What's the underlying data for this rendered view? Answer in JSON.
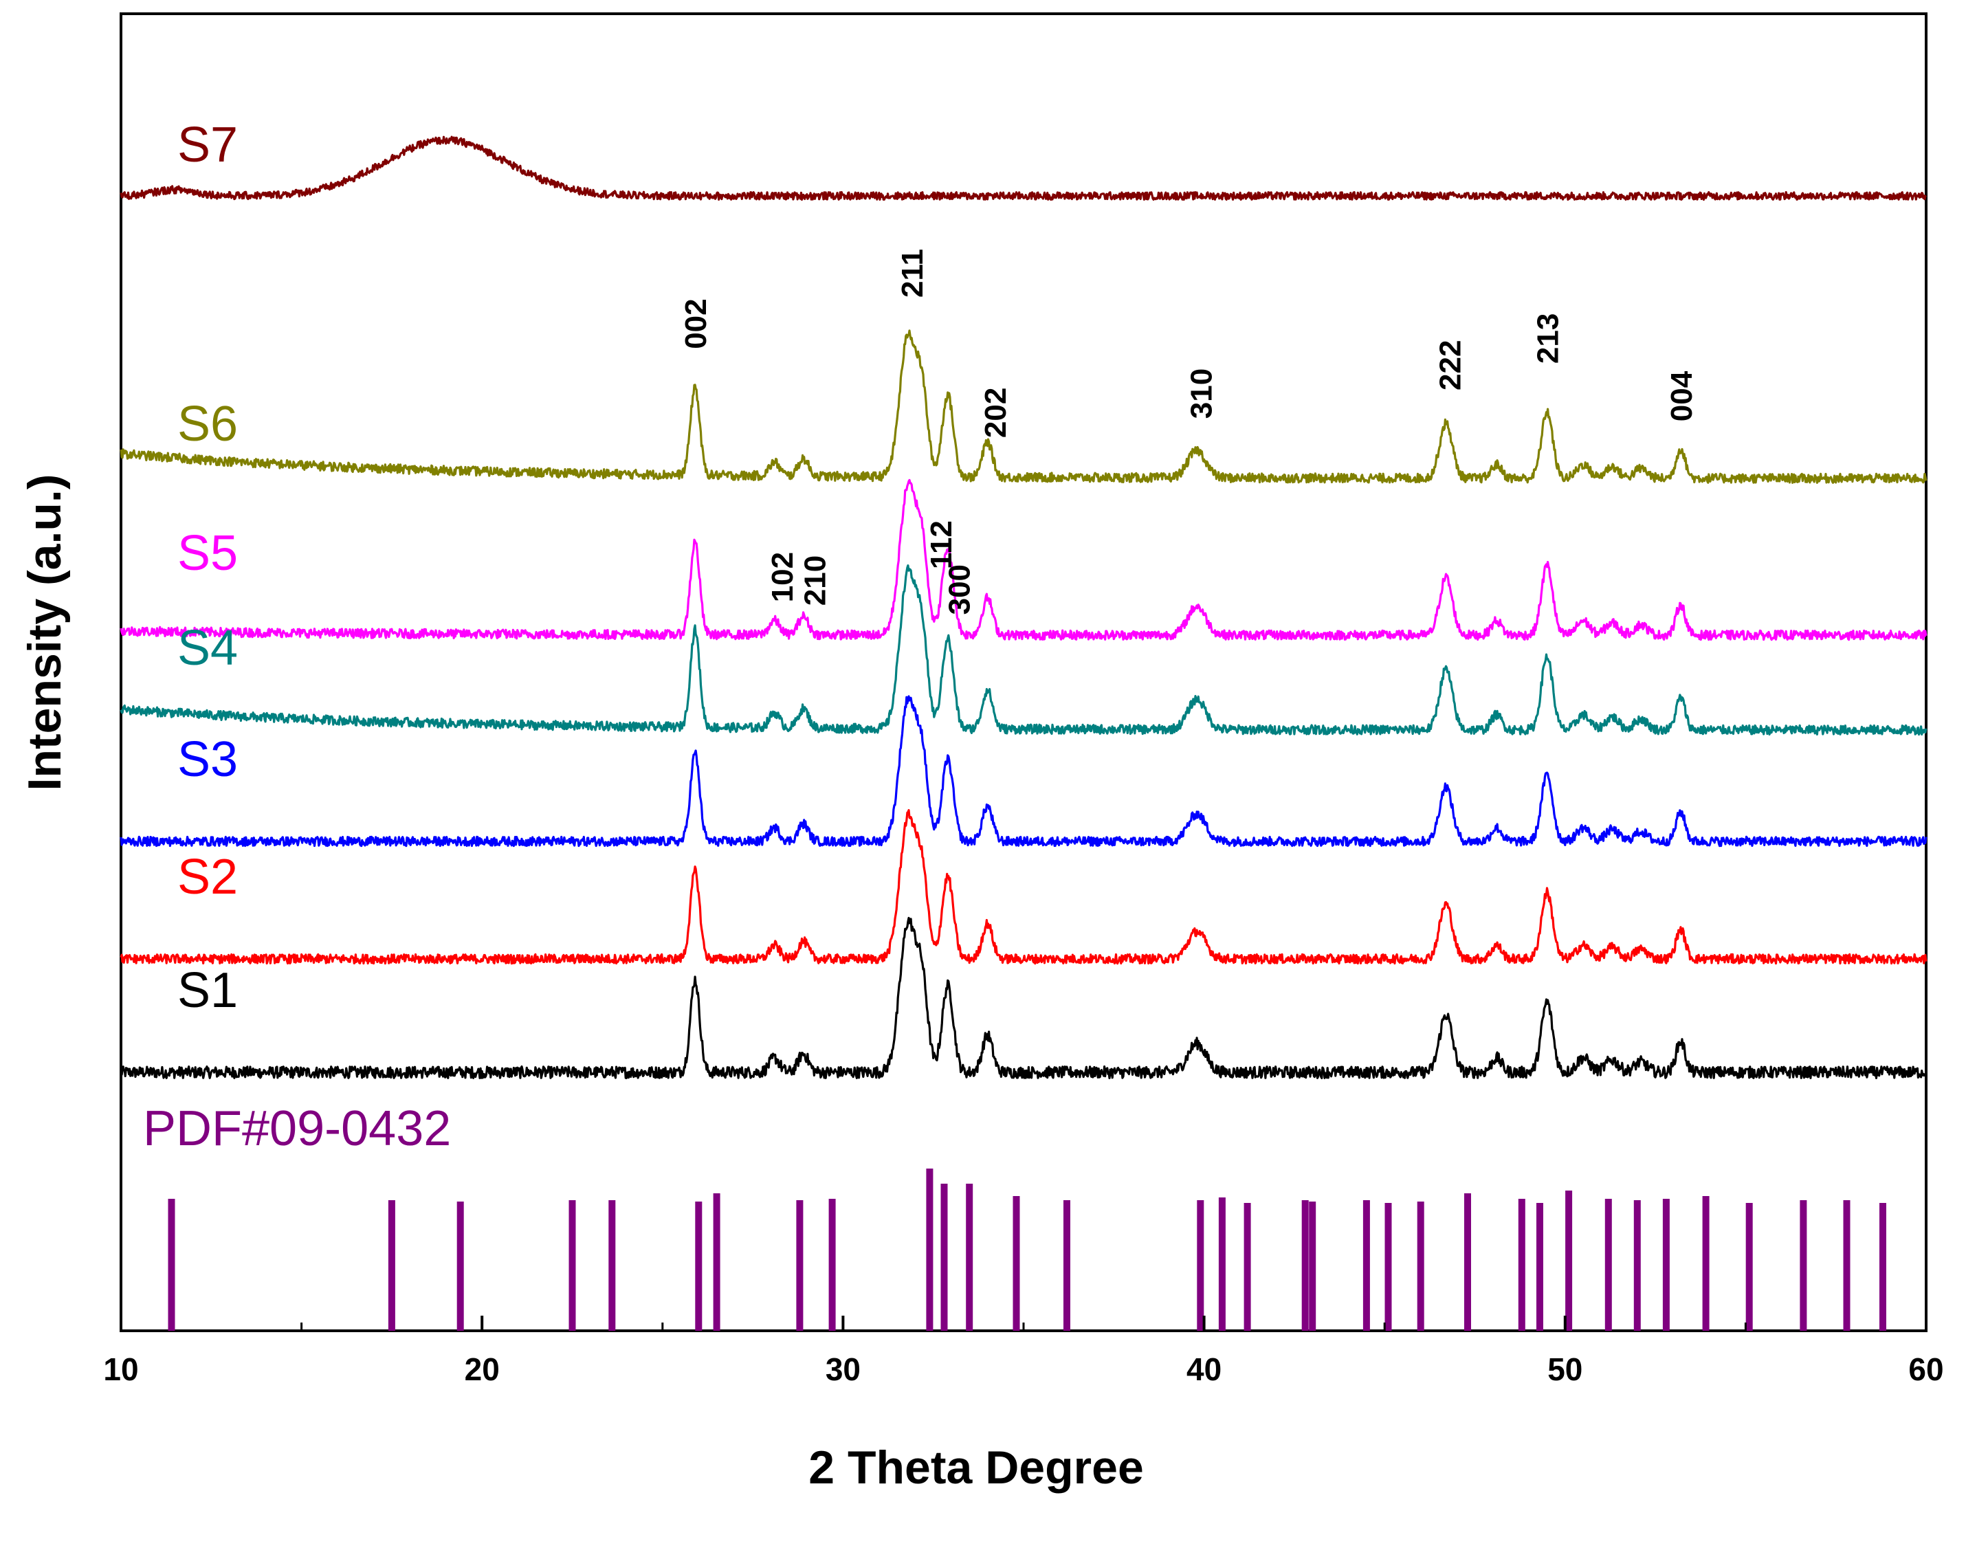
{
  "chart_data": {
    "type": "line",
    "title": "",
    "xlabel": "2 Theta Degree",
    "ylabel": "Intensity (a.u.)",
    "xlim": [
      10,
      60
    ],
    "xticks": [
      10,
      20,
      30,
      40,
      50,
      60
    ],
    "xtick_labels": [
      "10",
      "20",
      "30",
      "40",
      "50",
      "60"
    ],
    "y_ticks_shown": false,
    "series": [
      {
        "name": "S1",
        "label": "S1",
        "color": "#000000",
        "offset": 0.0,
        "noise": 0.028,
        "baseline": 0.0,
        "peak_scale": 1.0
      },
      {
        "name": "S2",
        "label": "S2",
        "color": "#ff0000",
        "offset": 0.55,
        "noise": 0.022,
        "baseline": 0.0,
        "peak_scale": 0.95
      },
      {
        "name": "S3",
        "label": "S3",
        "color": "#0000ff",
        "offset": 1.12,
        "noise": 0.022,
        "baseline": 0.0,
        "peak_scale": 0.95
      },
      {
        "name": "S4",
        "label": "S4",
        "color": "#008080",
        "offset": 1.66,
        "noise": 0.022,
        "baseline": 0.1,
        "peak_scale": 1.05
      },
      {
        "name": "S5",
        "label": "S5",
        "color": "#ff00ff",
        "offset": 2.12,
        "noise": 0.022,
        "baseline": 0.02,
        "peak_scale": 1.0
      },
      {
        "name": "S6",
        "label": "S6",
        "color": "#808000",
        "offset": 2.88,
        "noise": 0.022,
        "baseline": 0.12,
        "peak_scale": 0.95
      },
      {
        "name": "S7",
        "label": "S7",
        "color": "#800000",
        "offset": 4.25,
        "noise": 0.018,
        "baseline": 0.0,
        "peak_scale": 0.0
      }
    ],
    "peaks": [
      {
        "x": 25.9,
        "h": 0.45,
        "w": 0.18
      },
      {
        "x": 28.1,
        "h": 0.07,
        "w": 0.2
      },
      {
        "x": 28.9,
        "h": 0.09,
        "w": 0.2
      },
      {
        "x": 31.8,
        "h": 0.72,
        "w": 0.32
      },
      {
        "x": 32.2,
        "h": 0.38,
        "w": 0.22
      },
      {
        "x": 32.9,
        "h": 0.42,
        "w": 0.22
      },
      {
        "x": 34.0,
        "h": 0.18,
        "w": 0.2
      },
      {
        "x": 39.8,
        "h": 0.14,
        "w": 0.35
      },
      {
        "x": 46.7,
        "h": 0.28,
        "w": 0.25
      },
      {
        "x": 48.1,
        "h": 0.07,
        "w": 0.2
      },
      {
        "x": 49.5,
        "h": 0.34,
        "w": 0.22
      },
      {
        "x": 50.5,
        "h": 0.07,
        "w": 0.25
      },
      {
        "x": 51.3,
        "h": 0.06,
        "w": 0.25
      },
      {
        "x": 52.1,
        "h": 0.05,
        "w": 0.25
      },
      {
        "x": 53.2,
        "h": 0.15,
        "w": 0.18
      }
    ],
    "s7_hump": {
      "center": 19.0,
      "height": 0.27,
      "width": 2.4
    },
    "reference": {
      "label": "PDF#09-0432",
      "color": "#800080",
      "lines": [
        {
          "x": 11.4,
          "h": 0.96
        },
        {
          "x": 17.5,
          "h": 0.95
        },
        {
          "x": 19.4,
          "h": 0.94
        },
        {
          "x": 22.5,
          "h": 0.95
        },
        {
          "x": 23.6,
          "h": 0.95
        },
        {
          "x": 26.0,
          "h": 0.94
        },
        {
          "x": 26.5,
          "h": 1.0
        },
        {
          "x": 28.8,
          "h": 0.95
        },
        {
          "x": 29.7,
          "h": 0.96
        },
        {
          "x": 32.4,
          "h": 1.18
        },
        {
          "x": 32.8,
          "h": 1.07
        },
        {
          "x": 33.5,
          "h": 1.07
        },
        {
          "x": 34.8,
          "h": 0.98
        },
        {
          "x": 36.2,
          "h": 0.95
        },
        {
          "x": 39.9,
          "h": 0.95
        },
        {
          "x": 40.5,
          "h": 0.97
        },
        {
          "x": 41.2,
          "h": 0.93
        },
        {
          "x": 42.8,
          "h": 0.95
        },
        {
          "x": 43.0,
          "h": 0.94
        },
        {
          "x": 44.5,
          "h": 0.95
        },
        {
          "x": 45.1,
          "h": 0.93
        },
        {
          "x": 46.0,
          "h": 0.94
        },
        {
          "x": 47.3,
          "h": 1.0
        },
        {
          "x": 48.8,
          "h": 0.96
        },
        {
          "x": 49.3,
          "h": 0.93
        },
        {
          "x": 50.1,
          "h": 1.02
        },
        {
          "x": 51.2,
          "h": 0.96
        },
        {
          "x": 52.0,
          "h": 0.95
        },
        {
          "x": 52.8,
          "h": 0.96
        },
        {
          "x": 53.9,
          "h": 0.98
        },
        {
          "x": 55.1,
          "h": 0.93
        },
        {
          "x": 56.6,
          "h": 0.95
        },
        {
          "x": 57.8,
          "h": 0.95
        },
        {
          "x": 58.8,
          "h": 0.93
        }
      ]
    },
    "annotations": [
      {
        "text": "002",
        "x": 25.9,
        "series": "S6"
      },
      {
        "text": "211",
        "x": 31.9,
        "series": "S6"
      },
      {
        "text": "202",
        "x": 34.2,
        "series": "S6"
      },
      {
        "text": "310",
        "x": 39.9,
        "series": "S6"
      },
      {
        "text": "222",
        "x": 46.8,
        "series": "S6"
      },
      {
        "text": "213",
        "x": 49.5,
        "series": "S6"
      },
      {
        "text": "004",
        "x": 53.2,
        "series": "S6"
      },
      {
        "text": "112",
        "x": 32.7,
        "series": "S5"
      },
      {
        "text": "300",
        "x": 33.2,
        "series": "S5"
      },
      {
        "text": "102",
        "x": 28.3,
        "series": "S5"
      },
      {
        "text": "210",
        "x": 29.2,
        "series": "S5"
      }
    ]
  }
}
